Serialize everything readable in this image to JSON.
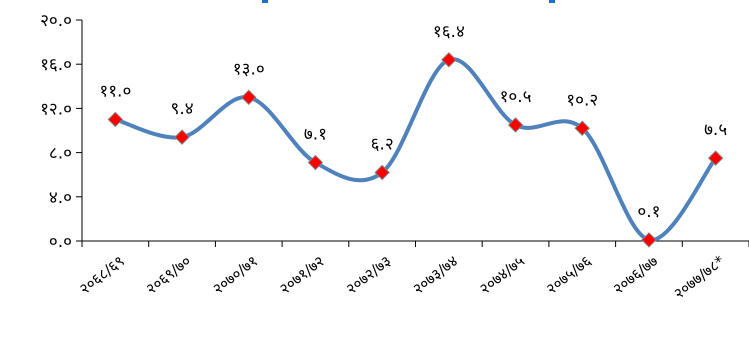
{
  "chart_data": {
    "type": "line",
    "title": "",
    "xlabel": "",
    "ylabel": "",
    "categories": [
      "२०६८/६९",
      "२०६९/७०",
      "२०७०/७१",
      "२०७१/७२",
      "२०७२/७३",
      "२०७३/७४",
      "२०७४/७५",
      "२०७५/७६",
      "२०७६/७७",
      "२०७७/७८*"
    ],
    "values": [
      11.0,
      9.4,
      13.0,
      7.1,
      6.2,
      16.4,
      10.5,
      10.2,
      0.1,
      7.5
    ],
    "value_labels": [
      "११.०",
      "९.४",
      "१३.०",
      "७.१",
      "६.२",
      "१६.४",
      "१०.५",
      "१०.२",
      "०.१",
      "७.५"
    ],
    "ylim": [
      0,
      20
    ],
    "y_ticks": [
      0,
      4,
      8,
      12,
      16,
      20
    ],
    "y_tick_labels": [
      "०.०",
      "४.०",
      "८.०",
      "१२.०",
      "१६.०",
      "२०.०"
    ],
    "grid": false,
    "legend": "none",
    "colors": {
      "line": "#4f81bd",
      "marker": "#ff0000",
      "marker_stroke": "#808080",
      "axis": "#000000",
      "title": "#1f6fd1"
    }
  }
}
